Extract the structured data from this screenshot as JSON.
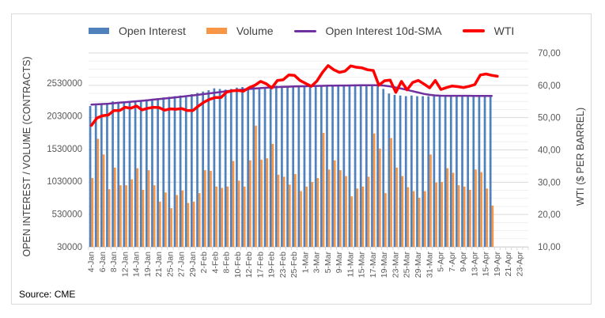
{
  "source": "Source: CME",
  "chart_data": {
    "type": "bar",
    "title": "",
    "legend": {
      "placement": "top",
      "entries": [
        {
          "name": "Open Interest",
          "kind": "bar",
          "color": "#4f81bd"
        },
        {
          "name": "Volume",
          "kind": "bar",
          "color": "#f79646"
        },
        {
          "name": "Open Interest 10d-SMA",
          "kind": "line",
          "color": "#7030a0"
        },
        {
          "name": "WTI",
          "kind": "line",
          "color": "#ff0000"
        }
      ]
    },
    "ylabel": "OPEN INTEREST / VOLUME (CONTRACTS)",
    "y2label": "WTI ($ PER BARREL)",
    "ylim": [
      30000,
      2780000
    ],
    "y2lim": [
      10,
      70
    ],
    "yticks": [
      "30000",
      "530000",
      "1030000",
      "1530000",
      "2030000",
      "2530000"
    ],
    "y2ticks": [
      "10,00",
      "20,00",
      "30,00",
      "40,00",
      "50,00",
      "60,00",
      "70,00"
    ],
    "grid": true,
    "categories": [
      "4-Jan",
      "5-Jan",
      "6-Jan",
      "7-Jan",
      "8-Jan",
      "11-Jan",
      "12-Jan",
      "13-Jan",
      "14-Jan",
      "15-Jan",
      "19-Jan",
      "20-Jan",
      "21-Jan",
      "22-Jan",
      "25-Jan",
      "26-Jan",
      "27-Jan",
      "28-Jan",
      "29-Jan",
      "1-Feb",
      "2-Feb",
      "3-Feb",
      "4-Feb",
      "5-Feb",
      "8-Feb",
      "9-Feb",
      "10-Feb",
      "11-Feb",
      "12-Feb",
      "16-Feb",
      "17-Feb",
      "18-Feb",
      "19-Feb",
      "22-Feb",
      "23-Feb",
      "24-Feb",
      "25-Feb",
      "26-Feb",
      "1-Mar",
      "2-Mar",
      "3-Mar",
      "4-Mar",
      "5-Mar",
      "8-Mar",
      "9-Mar",
      "10-Mar",
      "11-Mar",
      "12-Mar",
      "15-Mar",
      "16-Mar",
      "17-Mar",
      "18-Mar",
      "19-Mar",
      "22-Mar",
      "23-Mar",
      "24-Mar",
      "25-Mar",
      "26-Mar",
      "29-Mar",
      "30-Mar",
      "31-Mar",
      "1-Apr",
      "5-Apr",
      "6-Apr",
      "7-Apr",
      "8-Apr",
      "9-Apr",
      "12-Apr",
      "13-Apr",
      "14-Apr",
      "15-Apr",
      "16-Apr",
      "19-Apr",
      "20-Apr",
      "21-Apr",
      "22-Apr",
      "23-Apr",
      "26-Apr"
    ],
    "xtick_labels": [
      "4-Jan",
      "6-Jan",
      "8-Jan",
      "12-Jan",
      "14-Jan",
      "19-Jan",
      "21-Jan",
      "25-Jan",
      "27-Jan",
      "29-Jan",
      "2-Feb",
      "4-Feb",
      "8-Feb",
      "10-Feb",
      "12-Feb",
      "17-Feb",
      "19-Feb",
      "23-Feb",
      "25-Feb",
      "1-Mar",
      "3-Mar",
      "5-Mar",
      "9-Mar",
      "11-Mar",
      "15-Mar",
      "17-Mar",
      "19-Mar",
      "23-Mar",
      "25-Mar",
      "29-Mar",
      "31-Mar",
      "5-Apr",
      "7-Apr",
      "9-Apr",
      "13-Apr",
      "15-Apr",
      "19-Apr",
      "21-Apr",
      "23-Apr"
    ],
    "series": [
      {
        "name": "Open Interest",
        "type": "bar",
        "values": [
          2180000,
          2190000,
          2200000,
          2220000,
          2250000,
          2240000,
          2250000,
          2250000,
          2260000,
          2270000,
          2280000,
          2290000,
          2300000,
          2310000,
          2320000,
          2330000,
          2340000,
          2340000,
          2360000,
          2380000,
          2400000,
          2420000,
          2450000,
          2440000,
          2430000,
          2440000,
          2460000,
          2470000,
          2450000,
          2470000,
          2460000,
          2470000,
          2490000,
          2490000,
          2480000,
          2480000,
          2480000,
          2490000,
          2490000,
          2490000,
          2490000,
          2490000,
          2490000,
          2490000,
          2490000,
          2490000,
          2500000,
          2510000,
          2510000,
          2510000,
          2500000,
          2490000,
          2440000,
          2370000,
          2350000,
          2340000,
          2330000,
          2340000,
          2330000,
          2330000,
          2330000,
          2340000,
          2330000,
          2330000,
          2330000,
          2330000,
          2330000,
          2330000,
          2320000,
          2330000,
          2330000,
          2330000,
          null,
          null,
          null,
          null,
          null,
          null
        ]
      },
      {
        "name": "Volume",
        "type": "bar",
        "values": [
          1080000,
          1680000,
          1440000,
          910000,
          1240000,
          970000,
          970000,
          1060000,
          1230000,
          900000,
          1200000,
          970000,
          720000,
          860000,
          620000,
          820000,
          890000,
          700000,
          720000,
          850000,
          1200000,
          1190000,
          950000,
          930000,
          950000,
          1340000,
          1040000,
          950000,
          1350000,
          1880000,
          1360000,
          1380000,
          1600000,
          1130000,
          1100000,
          980000,
          1140000,
          880000,
          950000,
          1020000,
          1080000,
          1770000,
          1210000,
          1350000,
          1200000,
          1110000,
          800000,
          920000,
          950000,
          1100000,
          1760000,
          1530000,
          850000,
          1690000,
          1240000,
          1110000,
          940000,
          880000,
          780000,
          880000,
          1440000,
          1010000,
          1020000,
          1230000,
          1160000,
          970000,
          950000,
          900000,
          1210000,
          1170000,
          920000,
          660000,
          null,
          null,
          null,
          null,
          null,
          null
        ]
      },
      {
        "name": "Open Interest 10d-SMA",
        "type": "line",
        "values": [
          2200000,
          2205000,
          2210000,
          2215000,
          2222000,
          2230000,
          2237000,
          2245000,
          2252000,
          2260000,
          2268000,
          2277000,
          2286000,
          2295000,
          2304000,
          2313000,
          2322000,
          2332000,
          2342000,
          2352000,
          2362000,
          2373000,
          2384000,
          2395000,
          2405000,
          2415000,
          2424000,
          2432000,
          2440000,
          2447000,
          2453000,
          2459000,
          2464000,
          2468000,
          2472000,
          2475000,
          2478000,
          2480000,
          2482000,
          2484000,
          2486000,
          2488000,
          2490000,
          2491000,
          2492000,
          2493000,
          2494000,
          2495000,
          2496000,
          2497000,
          2497000,
          2496000,
          2490000,
          2478000,
          2462000,
          2445000,
          2425000,
          2405000,
          2385000,
          2365000,
          2350000,
          2342000,
          2337000,
          2335000,
          2335000,
          2335000,
          2335000,
          2335000,
          2334000,
          2334000,
          2334000,
          2334000,
          null,
          null,
          null,
          null,
          null,
          null
        ]
      },
      {
        "name": "WTI",
        "type": "line",
        "axis": "secondary",
        "values": [
          47.6,
          49.9,
          50.6,
          50.8,
          52.2,
          52.2,
          53.2,
          52.9,
          53.6,
          52.4,
          52.9,
          53.2,
          53.1,
          52.3,
          52.7,
          52.6,
          52.8,
          52.2,
          52.2,
          53.6,
          54.8,
          55.7,
          56.2,
          56.2,
          57.9,
          58.3,
          58.4,
          58.2,
          59.3,
          60.0,
          61.2,
          60.5,
          59.2,
          61.5,
          61.7,
          63.2,
          63.1,
          61.5,
          60.6,
          59.7,
          61.3,
          64.0,
          66.1,
          64.8,
          64.0,
          64.4,
          66.0,
          65.6,
          65.4,
          64.8,
          64.6,
          60.0,
          61.4,
          61.6,
          57.8,
          61.2,
          58.6,
          60.9,
          61.5,
          60.4,
          59.2,
          61.5,
          58.7,
          59.3,
          59.8,
          59.6,
          59.3,
          59.7,
          60.2,
          63.2,
          63.5,
          63.1,
          62.8,
          null,
          null,
          null,
          null,
          null
        ]
      }
    ]
  }
}
